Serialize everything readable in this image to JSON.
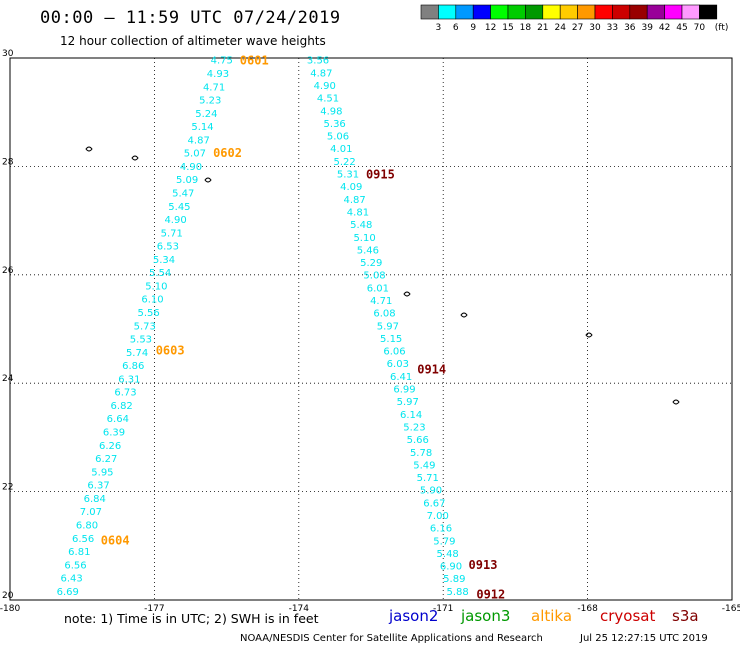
{
  "header": {
    "title": "00:00 – 11:59 UTC 07/24/2019",
    "subtitle": "12 hour collection of altimeter wave heights"
  },
  "legend": {
    "unit": "(ft)",
    "bins": [
      {
        "label": "3",
        "color": "#808080"
      },
      {
        "label": "6",
        "color": "#00ffff"
      },
      {
        "label": "9",
        "color": "#0099ff"
      },
      {
        "label": "12",
        "color": "#0000ff"
      },
      {
        "label": "15",
        "color": "#00ff00"
      },
      {
        "label": "18",
        "color": "#00cc00"
      },
      {
        "label": "21",
        "color": "#009900"
      },
      {
        "label": "24",
        "color": "#ffff00"
      },
      {
        "label": "27",
        "color": "#ffcc00"
      },
      {
        "label": "30",
        "color": "#ff9900"
      },
      {
        "label": "33",
        "color": "#ff0000"
      },
      {
        "label": "36",
        "color": "#cc0000"
      },
      {
        "label": "39",
        "color": "#990000"
      },
      {
        "label": "42",
        "color": "#990099"
      },
      {
        "label": "45",
        "color": "#ff00ff"
      },
      {
        "label": "70",
        "color": "#ff99ff"
      },
      {
        "label": "",
        "color": "#000000"
      }
    ]
  },
  "map": {
    "lon_range": [
      -180,
      -165
    ],
    "lat_range": [
      20,
      30
    ],
    "lon_ticks": [
      "-180",
      "-177",
      "-174",
      "-171",
      "-168",
      "-165"
    ],
    "lat_ticks": [
      "30",
      "28",
      "26",
      "24",
      "22",
      "20"
    ]
  },
  "tracks": [
    {
      "name": "west",
      "top_lon": -175.6,
      "bottom_lon": -178.8,
      "value_color": "#00e5ee",
      "values": [
        "4.75",
        "4.93",
        "4.71",
        "5.23",
        "5.24",
        "5.14",
        "4.87",
        "5.07",
        "4.90",
        "5.09",
        "5.47",
        "5.45",
        "4.90",
        "5.71",
        "6.53",
        "5.34",
        "5.54",
        "5.10",
        "6.10",
        "5.56",
        "5.73",
        "5.53",
        "5.74",
        "6.86",
        "6.31",
        "6.73",
        "6.82",
        "6.64",
        "6.39",
        "6.26",
        "6.27",
        "5.95",
        "6.37",
        "6.84",
        "7.07",
        "6.80",
        "6.56",
        "6.81",
        "6.56",
        "6.43",
        "6.69"
      ],
      "times": [
        {
          "label": "0601",
          "lat": 29.95,
          "color": "#ff9900"
        },
        {
          "label": "0602",
          "lat": 28.25,
          "color": "#ff9900"
        },
        {
          "label": "0603",
          "lat": 24.6,
          "color": "#ff9900"
        },
        {
          "label": "0604",
          "lat": 21.1,
          "color": "#ff9900"
        }
      ]
    },
    {
      "name": "east",
      "top_lon": -173.6,
      "bottom_lon": -170.7,
      "value_color": "#00e5ee",
      "values": [
        "3.56",
        "4.87",
        "4.90",
        "4.51",
        "4.98",
        "5.36",
        "5.06",
        "4.01",
        "5.22",
        "5.31",
        "4.09",
        "4.87",
        "4.81",
        "5.48",
        "5.10",
        "5.46",
        "5.29",
        "5.08",
        "6.01",
        "4.71",
        "6.08",
        "5.97",
        "5.15",
        "6.06",
        "6.03",
        "6.41",
        "6.99",
        "5.97",
        "6.14",
        "5.23",
        "5.66",
        "5.78",
        "5.49",
        "5.71",
        "5.90",
        "6.67",
        "7.00",
        "6.16",
        "5.79",
        "5.48",
        "6.90",
        "5.89",
        "5.88"
      ],
      "times": [
        {
          "label": "0915",
          "lat": 27.85,
          "color": "#800000"
        },
        {
          "label": "0914",
          "lat": 24.25,
          "color": "#800000"
        },
        {
          "label": "0913",
          "lat": 20.65,
          "color": "#800000"
        },
        {
          "label": "0912",
          "lat": 20.1,
          "color": "#800000"
        }
      ]
    }
  ],
  "footer": {
    "notes": "note:  1) Time is in UTC;  2) SWH is in feet",
    "missions": [
      {
        "label": "jason2",
        "color": "#0000cc"
      },
      {
        "label": "jason3",
        "color": "#009900"
      },
      {
        "label": "altika",
        "color": "#ff9900"
      },
      {
        "label": "cryosat",
        "color": "#cc0000"
      },
      {
        "label": "s3a",
        "color": "#800000"
      }
    ],
    "credit": "NOAA/NESDIS Center for Satellite Applications and Research",
    "timestamp": "Jul 25 12:27:15 UTC 2019"
  }
}
